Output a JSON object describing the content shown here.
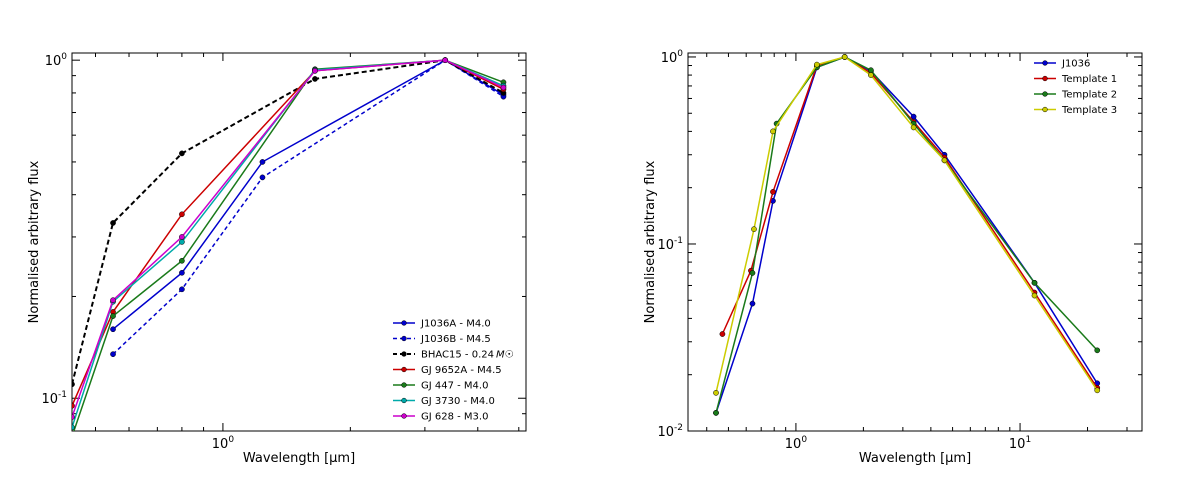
{
  "chart_data": [
    {
      "type": "line",
      "xscale": "log",
      "yscale": "log",
      "xlabel": "Wavelength [μm]",
      "ylabel": "Normalised arbitrary flux",
      "xlim": [
        0.44,
        5.2
      ],
      "ylim": [
        0.08,
        1.05
      ],
      "xticks": [
        {
          "value": 1.0,
          "base": "10",
          "exp": "0"
        }
      ],
      "yticks": [
        {
          "value": 0.1,
          "base": "10",
          "exp": "-1"
        },
        {
          "value": 1.0,
          "base": "10",
          "exp": "0"
        }
      ],
      "legend_position": "lower-right",
      "series": [
        {
          "name": "J1036A - M4.0",
          "color": "#0000cc",
          "dash": "solid",
          "x": [
            0.55,
            0.8,
            1.24,
            3.35,
            4.6
          ],
          "y": [
            0.16,
            0.235,
            0.5,
            1.0,
            0.79
          ]
        },
        {
          "name": "J1036B - M4.5",
          "color": "#0000cc",
          "dash": "dashed",
          "x": [
            0.55,
            0.8,
            1.24,
            3.35,
            4.6
          ],
          "y": [
            0.135,
            0.21,
            0.45,
            1.0,
            0.78
          ]
        },
        {
          "name": "BHAC15 - 0.24",
          "name_suffix": "M☉",
          "color": "#000000",
          "dash": "dashed",
          "thick": true,
          "x": [
            0.44,
            0.55,
            0.8,
            1.65,
            3.35,
            4.6
          ],
          "y": [
            0.11,
            0.33,
            0.53,
            0.88,
            1.0,
            0.8
          ]
        },
        {
          "name": "GJ 9652A - M4.5",
          "color": "#cc0000",
          "dash": "solid",
          "x": [
            0.44,
            0.55,
            0.8,
            1.65,
            3.35,
            4.6
          ],
          "y": [
            0.095,
            0.18,
            0.35,
            0.93,
            1.0,
            0.82
          ]
        },
        {
          "name": "GJ 447 - M4.0",
          "color": "#1a7a1a",
          "dash": "solid",
          "x": [
            0.44,
            0.55,
            0.8,
            1.65,
            3.35,
            4.6
          ],
          "y": [
            0.077,
            0.175,
            0.255,
            0.94,
            1.0,
            0.86
          ]
        },
        {
          "name": "GJ 3730 - M4.0",
          "color": "#00aaaa",
          "dash": "solid",
          "x": [
            0.44,
            0.55,
            0.8,
            1.65,
            3.35,
            4.6
          ],
          "y": [
            0.082,
            0.193,
            0.29,
            0.935,
            1.0,
            0.84
          ]
        },
        {
          "name": "GJ 628 - M3.0",
          "color": "#cc00cc",
          "dash": "solid",
          "x": [
            0.44,
            0.55,
            0.8,
            1.65,
            3.35,
            4.6
          ],
          "y": [
            0.088,
            0.195,
            0.3,
            0.93,
            1.0,
            0.83
          ]
        }
      ]
    },
    {
      "type": "line",
      "xscale": "log",
      "yscale": "log",
      "xlabel": "Wavelength [μm]",
      "ylabel": "Normalised arbitrary flux",
      "xlim": [
        0.33,
        35
      ],
      "ylim": [
        0.01,
        1.05
      ],
      "xticks": [
        {
          "value": 1.0,
          "base": "10",
          "exp": "0"
        },
        {
          "value": 10.0,
          "base": "10",
          "exp": "1"
        }
      ],
      "yticks": [
        {
          "value": 0.01,
          "base": "10",
          "exp": "-2"
        },
        {
          "value": 0.1,
          "base": "10",
          "exp": "-1"
        },
        {
          "value": 1.0,
          "base": "10",
          "exp": "0"
        }
      ],
      "legend_position": "top-right",
      "series": [
        {
          "name": "J1036",
          "color": "#0000cc",
          "dash": "solid",
          "x": [
            0.44,
            0.64,
            0.79,
            1.24,
            1.65,
            2.16,
            3.35,
            4.6,
            11.6,
            22.1
          ],
          "y": [
            0.0125,
            0.048,
            0.17,
            0.88,
            1.0,
            0.84,
            0.48,
            0.3,
            0.062,
            0.018
          ]
        },
        {
          "name": "Template 1",
          "color": "#cc0000",
          "dash": "solid",
          "x": [
            0.47,
            0.63,
            0.79,
            1.24,
            1.65,
            2.16,
            3.35,
            4.6,
            11.6,
            22.1
          ],
          "y": [
            0.033,
            0.072,
            0.19,
            0.9,
            1.0,
            0.82,
            0.45,
            0.29,
            0.055,
            0.017
          ]
        },
        {
          "name": "Template 2",
          "color": "#1a7a1a",
          "dash": "solid",
          "x": [
            0.44,
            0.64,
            0.82,
            1.24,
            1.65,
            2.16,
            3.35,
            4.6,
            11.6,
            22.1
          ],
          "y": [
            0.0125,
            0.07,
            0.44,
            0.88,
            1.0,
            0.85,
            0.44,
            0.28,
            0.062,
            0.027
          ]
        },
        {
          "name": "Template 3",
          "color": "#cccc00",
          "dash": "solid",
          "x": [
            0.44,
            0.65,
            0.79,
            1.24,
            1.65,
            2.16,
            3.35,
            4.6,
            11.6,
            22.1
          ],
          "y": [
            0.016,
            0.12,
            0.4,
            0.91,
            1.0,
            0.8,
            0.42,
            0.28,
            0.053,
            0.0165
          ]
        }
      ]
    }
  ]
}
